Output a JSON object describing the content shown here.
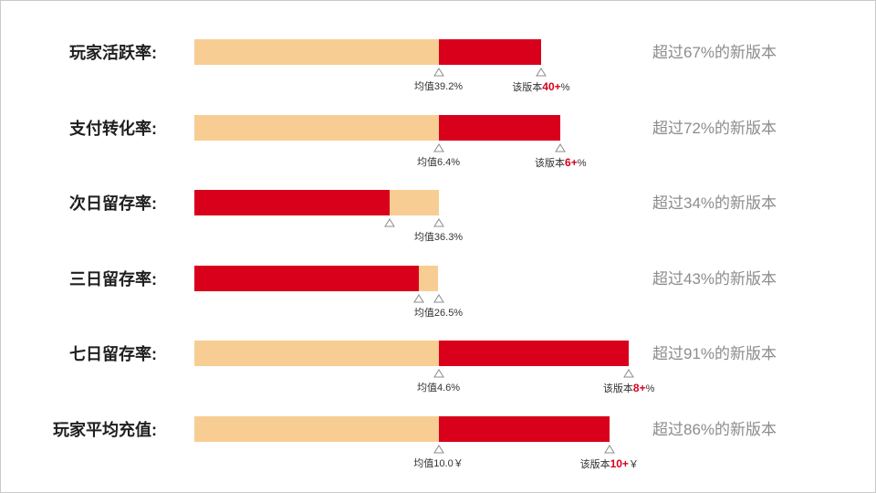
{
  "colors": {
    "background_bar": "#f8cd93",
    "highlight_bar": "#d9001b",
    "marker": "#8c8c8c",
    "comparison_text": "#8c8c8c"
  },
  "chart_data": {
    "type": "bar",
    "orientation": "horizontal",
    "rows": [
      {
        "label": "玩家活跃率:",
        "avg_label": "均值39.2%",
        "version_prefix": "该版本",
        "version_bold": "40+",
        "version_suffix": "%",
        "comparison": "超过67%的新版本",
        "avg_fraction": 0.5,
        "version_fraction": 0.71
      },
      {
        "label": "支付转化率:",
        "avg_label": "均值6.4%",
        "version_prefix": "该版本",
        "version_bold": "6+",
        "version_suffix": "%",
        "comparison": "超过72%的新版本",
        "avg_fraction": 0.5,
        "version_fraction": 0.75
      },
      {
        "label": "次日留存率:",
        "avg_label": "均值36.3%",
        "version_prefix": "",
        "version_bold": "",
        "version_suffix": "",
        "comparison": "超过34%的新版本",
        "avg_fraction": 0.5,
        "version_fraction": 0.4
      },
      {
        "label": "三日留存率:",
        "avg_label": "均值26.5%",
        "version_prefix": "",
        "version_bold": "",
        "version_suffix": "",
        "comparison": "超过43%的新版本",
        "avg_fraction": 0.5,
        "version_fraction": 0.46
      },
      {
        "label": "七日留存率:",
        "avg_label": "均值4.6%",
        "version_prefix": "该版本",
        "version_bold": "8+",
        "version_suffix": "%",
        "comparison": "超过91%的新版本",
        "avg_fraction": 0.5,
        "version_fraction": 0.89
      },
      {
        "label": "玩家平均充值:",
        "avg_label": "均值10.0￥",
        "version_prefix": "该版本",
        "version_bold": "10+",
        "version_suffix": "￥",
        "comparison": "超过86%的新版本",
        "avg_fraction": 0.5,
        "version_fraction": 0.85
      }
    ]
  }
}
